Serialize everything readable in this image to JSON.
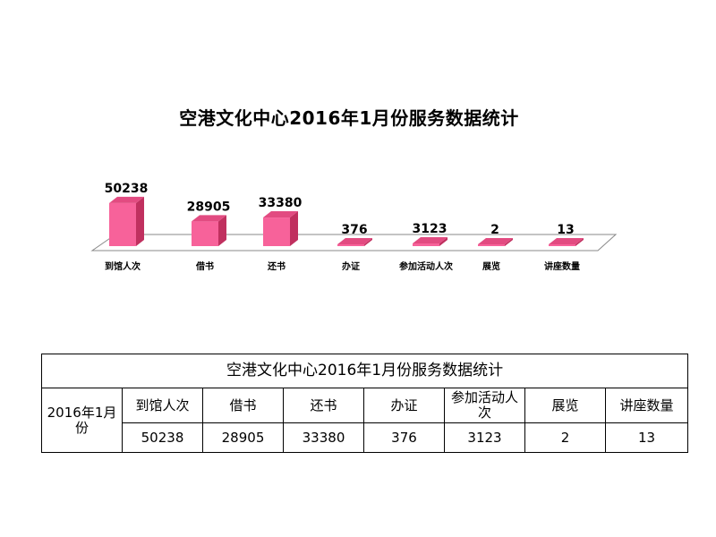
{
  "chart_data": {
    "type": "bar",
    "title": "空港文化中心2016年1月份服务数据统计",
    "categories": [
      "到馆人次",
      "借书",
      "还书",
      "办证",
      "参加活动人次",
      "展览",
      "讲座数量"
    ],
    "values": [
      50238,
      28905,
      33380,
      376,
      3123,
      2,
      13
    ],
    "ylim": [
      0,
      55000
    ],
    "colors": {
      "front": "#f7629a",
      "side": "#c0305f",
      "top": "#e24b81",
      "floor_border": "#888888"
    }
  },
  "table": {
    "title": "空港文化中心2016年1月份服务数据统计",
    "row_header": "2016年1月份",
    "headers": [
      "到馆人次",
      "借书",
      "还书",
      "办证",
      "参加活动人次",
      "展览",
      "讲座数量"
    ],
    "values": [
      "50238",
      "28905",
      "33380",
      "376",
      "3123",
      "2",
      "13"
    ]
  }
}
